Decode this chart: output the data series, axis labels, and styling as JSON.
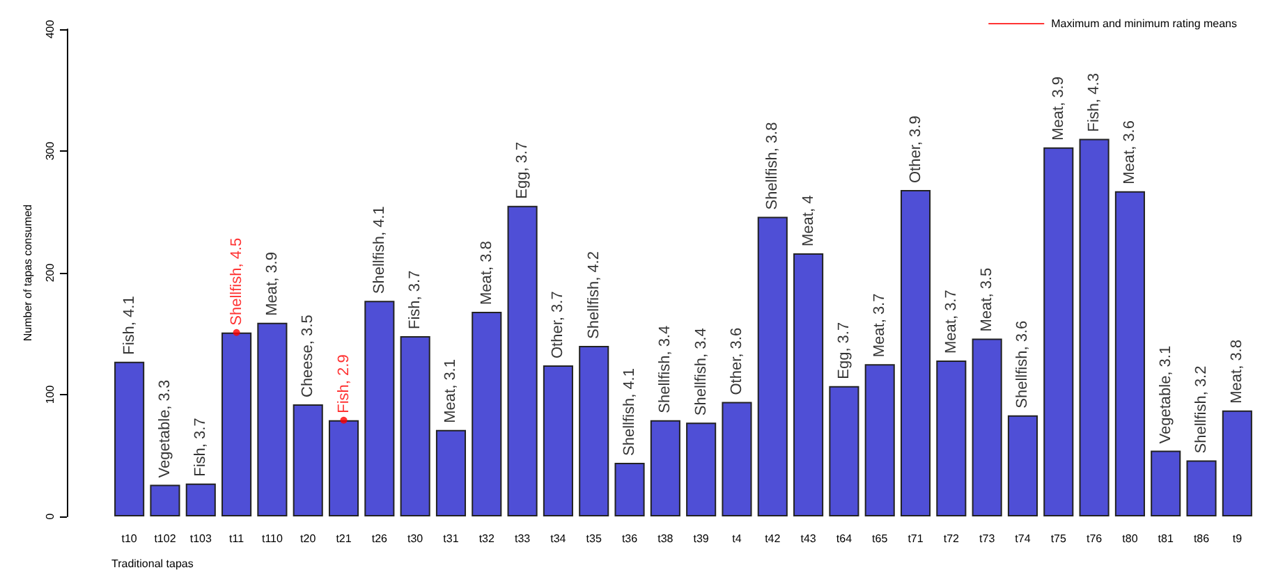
{
  "chart_data": {
    "type": "bar",
    "xlabel": "Traditional tapas",
    "ylabel": "Number of tapas consumed",
    "categories": [
      "t10",
      "t102",
      "t103",
      "t11",
      "t110",
      "t20",
      "t21",
      "t26",
      "t30",
      "t31",
      "t32",
      "t33",
      "t34",
      "t35",
      "t36",
      "t38",
      "t39",
      "t4",
      "t42",
      "t43",
      "t64",
      "t65",
      "t71",
      "t72",
      "t73",
      "t74",
      "t75",
      "t76",
      "t80",
      "t81",
      "t86",
      "t9"
    ],
    "series": [
      {
        "color": "#4f4fd6",
        "values": [
          127,
          26,
          27,
          151,
          159,
          92,
          79,
          177,
          148,
          71,
          168,
          255,
          124,
          140,
          44,
          79,
          77,
          94,
          246,
          216,
          107,
          125,
          268,
          128,
          146,
          83,
          303,
          310,
          267,
          54,
          46,
          87
        ]
      },
      {
        "type": "scatter",
        "name": "Maximum and minimum rating means",
        "color": "#ff0000",
        "values": [
          null,
          null,
          null,
          151,
          null,
          null,
          79,
          null,
          null,
          null,
          null,
          null,
          null,
          null,
          null,
          null,
          null,
          null,
          null,
          null,
          null,
          null,
          null,
          null,
          null,
          null,
          null,
          null,
          null,
          null,
          null,
          null
        ]
      }
    ],
    "annotations": [
      {
        "text": "Fish, 4.1",
        "x": "t10",
        "y": 127
      },
      {
        "text": "Vegetable, 3.3",
        "x": "t102",
        "y": 26
      },
      {
        "text": "Fish, 3.7",
        "x": "t103",
        "y": 27
      },
      {
        "text": "Shellfish, 4.5",
        "x": "t11",
        "y": 151
      },
      {
        "text": "Meat, 3.9",
        "x": "t110",
        "y": 159
      },
      {
        "text": "Cheese, 3.5",
        "x": "t20",
        "y": 92
      },
      {
        "text": "Fish, 2.9",
        "x": "t21",
        "y": 79
      },
      {
        "text": "Shellfish, 4.1",
        "x": "t26",
        "y": 177
      },
      {
        "text": "Fish, 3.7",
        "x": "t30",
        "y": 148
      },
      {
        "text": "Meat, 3.1",
        "x": "t31",
        "y": 71
      },
      {
        "text": "Meat, 3.8",
        "x": "t32",
        "y": 168
      },
      {
        "text": "Egg, 3.7",
        "x": "t33",
        "y": 255
      },
      {
        "text": "Other, 3.7",
        "x": "t34",
        "y": 124
      },
      {
        "text": "Shellfish, 4.2",
        "x": "t35",
        "y": 140
      },
      {
        "text": "Shellfish, 4.1",
        "x": "t36",
        "y": 44
      },
      {
        "text": "Shellfish, 3.4",
        "x": "t38",
        "y": 79
      },
      {
        "text": "Shellfish, 3.4",
        "x": "t39",
        "y": 77
      },
      {
        "text": "Other, 3.6",
        "x": "t4",
        "y": 94
      },
      {
        "text": "Shellfish, 3.8",
        "x": "t42",
        "y": 246
      },
      {
        "text": "Meat, 4",
        "x": "t43",
        "y": 216
      },
      {
        "text": "Egg, 3.7",
        "x": "t64",
        "y": 107
      },
      {
        "text": "Meat, 3.7",
        "x": "t65",
        "y": 125
      },
      {
        "text": "Other, 3.9",
        "x": "t71",
        "y": 268
      },
      {
        "text": "Meat, 3.7",
        "x": "t72",
        "y": 128
      },
      {
        "text": "Meat, 3.5",
        "x": "t73",
        "y": 146
      },
      {
        "text": "Shellfish, 3.6",
        "x": "t74",
        "y": 83
      },
      {
        "text": "Meat, 3.9",
        "x": "t75",
        "y": 303
      },
      {
        "text": "Fish, 4.3",
        "x": "t76",
        "y": 310
      },
      {
        "text": "Meat, 3.6",
        "x": "t80",
        "y": 267
      },
      {
        "text": "Vegetable, 3.1",
        "x": "t81",
        "y": 54
      },
      {
        "text": "Shellfish, 3.2",
        "x": "t86",
        "y": 46
      },
      {
        "text": "Meat, 3.8",
        "x": "t9",
        "y": 87
      }
    ],
    "ylim": [
      0,
      400
    ],
    "yticks": [
      0,
      100,
      200,
      300,
      400
    ],
    "grid": false,
    "legend": "top right",
    "marker": "circle"
  }
}
